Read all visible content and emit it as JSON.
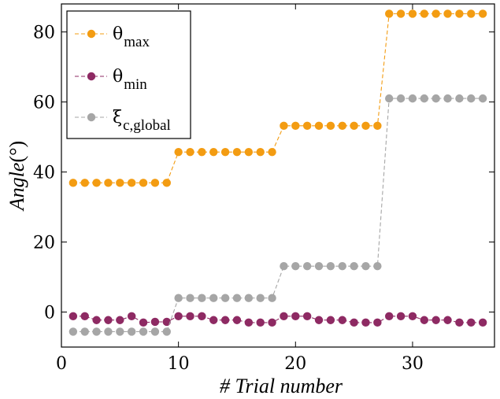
{
  "chart_data": {
    "type": "line",
    "title": "",
    "xlabel": "# Trial number",
    "ylabel_main": "Angle",
    "ylabel_unit": "(°)",
    "xlim": [
      0,
      37
    ],
    "ylim": [
      -10,
      88
    ],
    "xticks": [
      0,
      10,
      20,
      30
    ],
    "yticks": [
      0,
      20,
      40,
      60,
      80
    ],
    "grid": false,
    "legend_position": "top-left",
    "x": [
      1,
      2,
      3,
      4,
      5,
      6,
      7,
      8,
      9,
      10,
      11,
      12,
      13,
      14,
      15,
      16,
      17,
      18,
      19,
      20,
      21,
      22,
      23,
      24,
      25,
      26,
      27,
      28,
      29,
      30,
      31,
      32,
      33,
      34,
      35,
      36
    ],
    "series": [
      {
        "name": "θ",
        "subscript": "max",
        "color": "#f39c12",
        "marker": "circle",
        "line_style": "dashed",
        "values": [
          36.9,
          36.9,
          36.9,
          36.9,
          36.9,
          36.9,
          36.9,
          36.9,
          36.9,
          45.7,
          45.7,
          45.7,
          45.7,
          45.7,
          45.7,
          45.7,
          45.7,
          45.7,
          53.2,
          53.2,
          53.2,
          53.2,
          53.2,
          53.2,
          53.2,
          53.2,
          53.2,
          85.2,
          85.2,
          85.2,
          85.2,
          85.2,
          85.2,
          85.2,
          85.2,
          85.2
        ]
      },
      {
        "name": "θ",
        "subscript": "min",
        "color": "#8e2a63",
        "marker": "circle",
        "line_style": "dashed",
        "values": [
          -1.2,
          -1.2,
          -2.3,
          -2.3,
          -2.3,
          -1.2,
          -3.0,
          -2.8,
          -2.8,
          -1.2,
          -1.2,
          -1.2,
          -2.3,
          -2.3,
          -2.3,
          -3.0,
          -3.0,
          -3.0,
          -1.2,
          -1.2,
          -1.2,
          -2.3,
          -2.3,
          -2.3,
          -3.0,
          -3.0,
          -3.0,
          -1.2,
          -1.2,
          -1.2,
          -2.3,
          -2.3,
          -2.3,
          -3.0,
          -3.0,
          -3.0
        ]
      },
      {
        "name": "ξ",
        "subscript": "c,global",
        "color": "#a6a6a6",
        "marker": "circle",
        "line_style": "dashed",
        "values": [
          -5.6,
          -5.6,
          -5.6,
          -5.6,
          -5.6,
          -5.6,
          -5.6,
          -5.6,
          -5.6,
          4.0,
          4.0,
          4.0,
          4.0,
          4.0,
          4.0,
          4.0,
          4.0,
          4.0,
          13.1,
          13.1,
          13.1,
          13.1,
          13.1,
          13.1,
          13.1,
          13.1,
          13.1,
          61.0,
          61.0,
          61.0,
          61.0,
          61.0,
          61.0,
          61.0,
          61.0,
          61.0
        ]
      }
    ]
  }
}
